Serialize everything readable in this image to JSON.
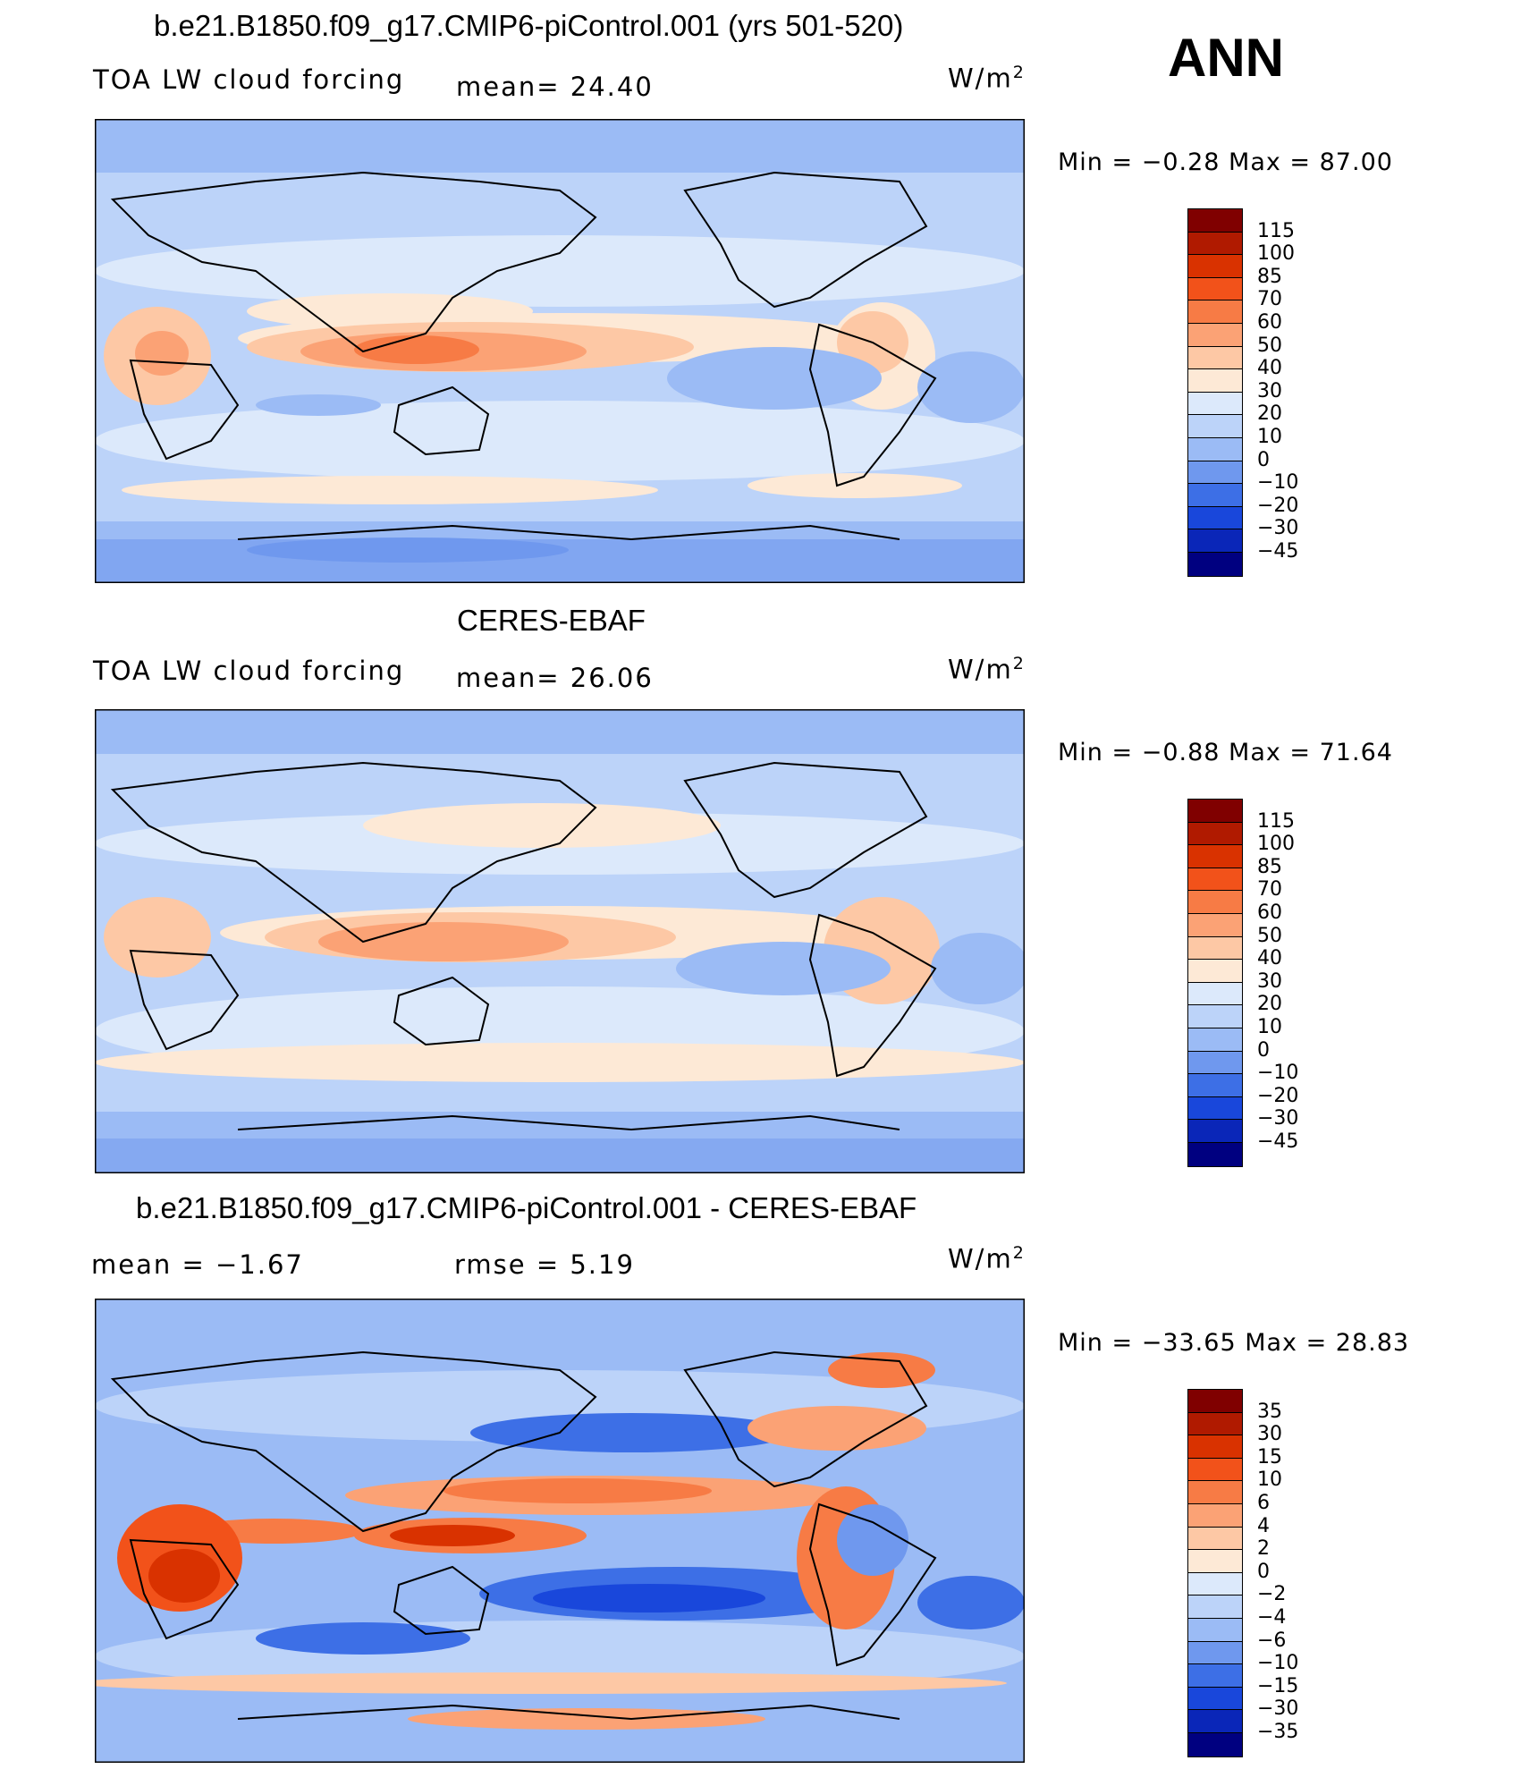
{
  "season": "ANN",
  "panels": [
    {
      "title": "b.e21.B1850.f09_g17.CMIP6-piControl.001 (yrs 501-520)",
      "left_label": "TOA LW cloud forcing",
      "center_label": "mean=   24.40",
      "units": "W/m",
      "units_sup": "2",
      "minmax": "Min  =    −0.28  Max  =    87.00",
      "map_name": "model-lw-cloud-forcing-map",
      "colorbar": {
        "labels": [
          "115",
          "100",
          "85",
          "70",
          "60",
          "50",
          "40",
          "30",
          "20",
          "10",
          "0",
          "−10",
          "−20",
          "−30",
          "−45"
        ],
        "colors": [
          "#800000",
          "#b01a00",
          "#d93200",
          "#f2521a",
          "#f77b45",
          "#fba275",
          "#fdc8a5",
          "#fde9d6",
          "#dce9fb",
          "#bcd3f9",
          "#9bbbf5",
          "#6f98ee",
          "#3d6fe6",
          "#1947db",
          "#0a26b8",
          "#000080"
        ]
      }
    },
    {
      "title": "CERES-EBAF",
      "left_label": "TOA LW cloud forcing",
      "center_label": "mean=   26.06",
      "units": "W/m",
      "units_sup": "2",
      "minmax": "Min  =    −0.88  Max  =    71.64",
      "map_name": "ceres-ebaf-lw-cloud-forcing-map",
      "colorbar": {
        "labels": [
          "115",
          "100",
          "85",
          "70",
          "60",
          "50",
          "40",
          "30",
          "20",
          "10",
          "0",
          "−10",
          "−20",
          "−30",
          "−45"
        ],
        "colors": [
          "#800000",
          "#b01a00",
          "#d93200",
          "#f2521a",
          "#f77b45",
          "#fba275",
          "#fdc8a5",
          "#fde9d6",
          "#dce9fb",
          "#bcd3f9",
          "#9bbbf5",
          "#6f98ee",
          "#3d6fe6",
          "#1947db",
          "#0a26b8",
          "#000080"
        ]
      }
    },
    {
      "title": "b.e21.B1850.f09_g17.CMIP6-piControl.001 - CERES-EBAF",
      "left_label": "mean  =    −1.67",
      "center_label": "rmse  =     5.19",
      "units": "W/m",
      "units_sup": "2",
      "minmax": "Min  = −33.65  Max  =    28.83",
      "map_name": "difference-map",
      "colorbar": {
        "labels": [
          "35",
          "30",
          "15",
          "10",
          "6",
          "4",
          "2",
          "0",
          "−2",
          "−4",
          "−6",
          "−10",
          "−15",
          "−30",
          "−35"
        ],
        "colors": [
          "#800000",
          "#b01a00",
          "#d93200",
          "#f2521a",
          "#f77b45",
          "#fba275",
          "#fdc8a5",
          "#fde9d6",
          "#dce9fb",
          "#bcd3f9",
          "#9bbbf5",
          "#6f98ee",
          "#3d6fe6",
          "#1947db",
          "#0a26b8",
          "#000080"
        ]
      }
    }
  ]
}
